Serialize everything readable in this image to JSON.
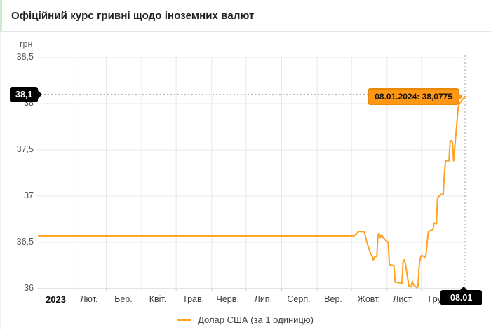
{
  "header": {
    "title": "Офіційний курс гривні щодо іноземних валют"
  },
  "colors": {
    "line_orange": "#ffa01e",
    "tooltip_bg": "#ff9716",
    "tooltip_border": "#e8890a",
    "crosshair_label_bg": "#000000",
    "title_accent_green": "#cfe8cf",
    "grid": "#e7e7e7",
    "axis": "#c9c9c9",
    "crosshair": "#9e9e9e"
  },
  "y_axis": {
    "unit": "грн",
    "ticks": [
      {
        "value": 38.5,
        "label": "38,5"
      },
      {
        "value": 38.0,
        "label": "38"
      },
      {
        "value": 37.5,
        "label": "37,5"
      },
      {
        "value": 37.0,
        "label": "37"
      },
      {
        "value": 36.5,
        "label": "36,5"
      },
      {
        "value": 36.0,
        "label": "36"
      }
    ]
  },
  "x_axis": {
    "boundaries": [
      "2023-02-01",
      "2023-03-01",
      "2023-04-01",
      "2023-05-01",
      "2023-06-01",
      "2023-07-01",
      "2023-08-01",
      "2023-09-01",
      "2023-10-01",
      "2023-11-01",
      "2023-12-01",
      "2024-01-01"
    ],
    "labels": [
      {
        "label": "2023",
        "center": "2023-01-16",
        "bold": true
      },
      {
        "label": "Лют.",
        "center": "2023-02-14"
      },
      {
        "label": "Бер.",
        "center": "2023-03-16"
      },
      {
        "label": "Квіт.",
        "center": "2023-04-15"
      },
      {
        "label": "Трав.",
        "center": "2023-05-16"
      },
      {
        "label": "Черв.",
        "center": "2023-06-15"
      },
      {
        "label": "Лип.",
        "center": "2023-07-16"
      },
      {
        "label": "Серп.",
        "center": "2023-08-16"
      },
      {
        "label": "Вер.",
        "center": "2023-09-15"
      },
      {
        "label": "Жовт.",
        "center": "2023-10-16"
      },
      {
        "label": "Лист.",
        "center": "2023-11-15"
      },
      {
        "label": "Груд.",
        "center": "2023-12-16"
      }
    ]
  },
  "chart_data": {
    "type": "line",
    "title": "Офіційний курс гривні щодо іноземних валют",
    "xlabel": "",
    "ylabel": "грн",
    "ylim": [
      36,
      38.5
    ],
    "y_tick_step": 0.5,
    "x_range": [
      "2023-01-01",
      "2024-01-08"
    ],
    "grid": true,
    "legend_position": "bottom",
    "series": [
      {
        "name": "Долар США (за 1 одиницю)",
        "color": "#ffa01e",
        "points": [
          [
            "2023-01-01",
            36.5686
          ],
          [
            "2023-06-01",
            36.5686
          ],
          [
            "2023-10-03",
            36.5686
          ],
          [
            "2023-10-05",
            36.59
          ],
          [
            "2023-10-07",
            36.62
          ],
          [
            "2023-10-12",
            36.62
          ],
          [
            "2023-10-14",
            36.52
          ],
          [
            "2023-10-17",
            36.4
          ],
          [
            "2023-10-19",
            36.35
          ],
          [
            "2023-10-20",
            36.31
          ],
          [
            "2023-10-21",
            36.34
          ],
          [
            "2023-10-23",
            36.35
          ],
          [
            "2023-10-24",
            36.57
          ],
          [
            "2023-10-25",
            36.6
          ],
          [
            "2023-10-26",
            36.55
          ],
          [
            "2023-10-27",
            36.58
          ],
          [
            "2023-10-30",
            36.53
          ],
          [
            "2023-11-01",
            36.51
          ],
          [
            "2023-11-02",
            36.5
          ],
          [
            "2023-11-03",
            36.26
          ],
          [
            "2023-11-07",
            36.25
          ],
          [
            "2023-11-08",
            36.07
          ],
          [
            "2023-11-14",
            36.06
          ],
          [
            "2023-11-15",
            36.3
          ],
          [
            "2023-11-16",
            36.31
          ],
          [
            "2023-11-17",
            36.27
          ],
          [
            "2023-11-20",
            36.03
          ],
          [
            "2023-11-22",
            36.02
          ],
          [
            "2023-11-23",
            36.08
          ],
          [
            "2023-11-24",
            36.04
          ],
          [
            "2023-11-27",
            36.01
          ],
          [
            "2023-11-28",
            36.03
          ],
          [
            "2023-11-29",
            36.25
          ],
          [
            "2023-11-30",
            36.33
          ],
          [
            "2023-12-01",
            36.36
          ],
          [
            "2023-12-04",
            36.34
          ],
          [
            "2023-12-05",
            36.37
          ],
          [
            "2023-12-06",
            36.51
          ],
          [
            "2023-12-07",
            36.62
          ],
          [
            "2023-12-11",
            36.64
          ],
          [
            "2023-12-12",
            36.71
          ],
          [
            "2023-12-14",
            36.7
          ],
          [
            "2023-12-15",
            36.98
          ],
          [
            "2023-12-18",
            37.02
          ],
          [
            "2023-12-20",
            37.02
          ],
          [
            "2023-12-21",
            37.25
          ],
          [
            "2023-12-22",
            37.38
          ],
          [
            "2023-12-25",
            37.38
          ],
          [
            "2023-12-26",
            37.6
          ],
          [
            "2023-12-28",
            37.59
          ],
          [
            "2023-12-29",
            37.38
          ],
          [
            "2024-01-02",
            37.96
          ],
          [
            "2024-01-03",
            38.0
          ],
          [
            "2024-01-05",
            38.03
          ],
          [
            "2024-01-08",
            38.0775
          ]
        ]
      }
    ],
    "highlight": {
      "date": "2024-01-08",
      "value": 38.0775,
      "label": "08.01.2024: 38,0775",
      "rounded_value": 38.1,
      "rounded_value_label": "38,1",
      "date_label": "08.01"
    }
  }
}
